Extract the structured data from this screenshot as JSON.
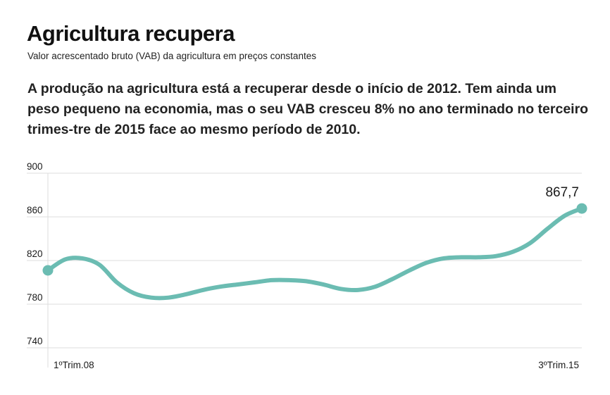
{
  "header": {
    "title": "Agricultura recupera",
    "subtitle": "Valor acrescentado bruto (VAB) da agricultura em preços constantes",
    "lead": "A produção na agricultura está a recuperar desde o início de 2012. Tem ainda um peso pequeno na economia, mas o seu VAB cresceu 8% no ano terminado no terceiro trimes-tre de 2015 face ao mesmo período de 2010."
  },
  "colors": {
    "line": "#6bbcb2",
    "grid": "#dcdcdc",
    "text": "#1a1a1a"
  },
  "chart_data": {
    "type": "line",
    "x_start_label": "1ºTrim.08",
    "x_end_label": "3ºTrim.15",
    "y_ticks": [
      "900",
      "860",
      "820",
      "780",
      "740"
    ],
    "ylim": [
      740,
      900
    ],
    "grid": true,
    "series": [
      {
        "values": [
          811,
          821,
          822,
          816,
          800,
          790,
          786,
          786,
          789,
          793,
          796,
          798,
          800,
          802,
          802,
          801,
          798,
          794,
          793,
          796,
          803,
          811,
          818,
          822,
          823,
          823,
          824,
          828,
          836,
          849,
          861,
          867.7
        ]
      }
    ],
    "end_label": "867,7"
  }
}
